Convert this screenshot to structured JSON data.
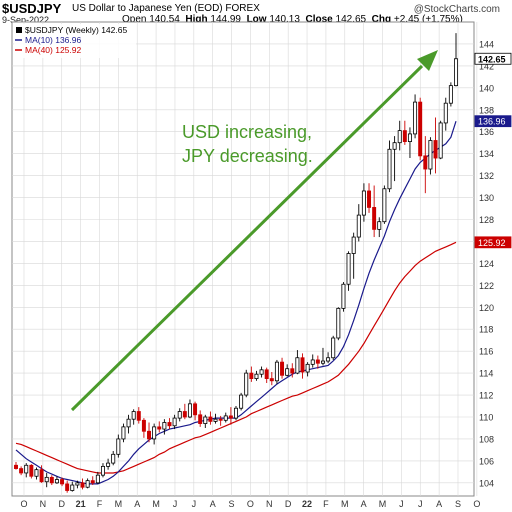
{
  "header": {
    "symbol": "$USDJPY",
    "description": "US Dollar to Japanese Yen (EOD)  FOREX",
    "copyright": "@StockCharts.com",
    "date": "9-Sep-2022",
    "open_label": "Open",
    "open": "140.54",
    "high_label": "High",
    "high": "144.99",
    "low_label": "Low",
    "low": "140.13",
    "close_label": "Close",
    "close": "142.65",
    "chg_label": "Chg",
    "chg": "+2.45 (+1.75%)"
  },
  "legend": [
    {
      "label": "$USDJPY (Weekly) 142.65",
      "color": "#000000"
    },
    {
      "label": "MA(10) 136.96",
      "color": "#1a1a8c"
    },
    {
      "label": "MA(40) 125.92",
      "color": "#cc0000"
    }
  ],
  "annotation": {
    "line1": "USD increasing,",
    "line2": "JPY decreasing.",
    "color": "#4a9a2a"
  },
  "colors": {
    "up": "#000000",
    "down": "#cc0000",
    "ma10": "#1a1a8c",
    "ma40": "#cc0000",
    "arrow": "#4a9a2a",
    "grid": "#d8d8d8"
  },
  "chart_data": {
    "type": "candlestick",
    "title": "$USDJPY",
    "y_ticks": [
      104,
      106,
      108,
      110,
      112,
      114,
      116,
      118,
      120,
      122,
      124,
      126,
      128,
      130,
      132,
      134,
      136,
      138,
      140,
      142,
      144
    ],
    "y_range": [
      102.8,
      146
    ],
    "x_labels": [
      "O",
      "N",
      "D",
      "21",
      "F",
      "M",
      "A",
      "M",
      "J",
      "J",
      "A",
      "S",
      "O",
      "N",
      "D",
      "22",
      "F",
      "M",
      "A",
      "M",
      "J",
      "J",
      "A",
      "S",
      "O"
    ],
    "last_price_tags": [
      {
        "value": 142.65,
        "label": "142.65",
        "bold": true
      },
      {
        "value": 136.96,
        "label": "136.96"
      },
      {
        "value": 125.92,
        "label": "125.92"
      }
    ],
    "candles": [
      [
        105.6,
        105.9,
        105.2,
        105.3
      ],
      [
        105.3,
        105.5,
        104.7,
        104.9
      ],
      [
        104.9,
        105.8,
        104.5,
        105.6
      ],
      [
        105.6,
        105.7,
        104.4,
        104.6
      ],
      [
        104.6,
        105.4,
        104.3,
        105.2
      ],
      [
        105.2,
        105.6,
        104.0,
        104.1
      ],
      [
        104.1,
        104.9,
        103.6,
        104.5
      ],
      [
        104.5,
        104.7,
        103.8,
        104.0
      ],
      [
        104.0,
        104.6,
        103.9,
        104.3
      ],
      [
        104.3,
        104.5,
        103.7,
        103.9
      ],
      [
        103.9,
        104.2,
        103.1,
        103.3
      ],
      [
        103.3,
        104.1,
        103.2,
        103.8
      ],
      [
        103.8,
        104.2,
        103.5,
        104.0
      ],
      [
        104.0,
        104.4,
        103.4,
        103.6
      ],
      [
        103.6,
        104.4,
        103.5,
        104.2
      ],
      [
        104.2,
        104.6,
        103.8,
        104.0
      ],
      [
        104.0,
        105.0,
        103.9,
        104.7
      ],
      [
        104.7,
        105.8,
        104.5,
        105.5
      ],
      [
        105.5,
        106.2,
        105.2,
        105.8
      ],
      [
        105.8,
        106.9,
        105.6,
        106.6
      ],
      [
        106.6,
        108.4,
        106.3,
        108.0
      ],
      [
        108.0,
        109.4,
        107.7,
        109.1
      ],
      [
        109.1,
        110.2,
        108.5,
        109.8
      ],
      [
        109.8,
        110.7,
        109.3,
        110.5
      ],
      [
        110.5,
        110.9,
        109.4,
        109.7
      ],
      [
        109.7,
        109.9,
        108.1,
        108.7
      ],
      [
        108.7,
        109.5,
        107.7,
        108.0
      ],
      [
        108.0,
        109.4,
        107.5,
        109.1
      ],
      [
        109.1,
        109.6,
        108.6,
        108.9
      ],
      [
        108.9,
        109.8,
        108.4,
        109.5
      ],
      [
        109.5,
        109.9,
        108.9,
        109.2
      ],
      [
        109.2,
        110.2,
        108.9,
        109.9
      ],
      [
        109.9,
        110.8,
        109.6,
        110.5
      ],
      [
        110.5,
        111.2,
        109.8,
        110.0
      ],
      [
        110.0,
        111.6,
        109.9,
        111.2
      ],
      [
        111.2,
        111.4,
        109.7,
        110.2
      ],
      [
        110.2,
        110.6,
        109.1,
        109.4
      ],
      [
        109.4,
        110.2,
        109.0,
        110.0
      ],
      [
        110.0,
        110.5,
        109.3,
        109.6
      ],
      [
        109.6,
        110.3,
        109.4,
        109.8
      ],
      [
        109.8,
        110.1,
        109.2,
        109.7
      ],
      [
        109.7,
        110.4,
        109.5,
        110.1
      ],
      [
        110.1,
        110.9,
        109.3,
        109.9
      ],
      [
        109.9,
        111.0,
        109.7,
        110.8
      ],
      [
        110.8,
        112.2,
        110.6,
        112.0
      ],
      [
        112.0,
        114.3,
        111.8,
        114.0
      ],
      [
        114.0,
        114.6,
        113.2,
        113.5
      ],
      [
        113.5,
        114.2,
        113.3,
        113.9
      ],
      [
        113.9,
        114.6,
        113.6,
        114.3
      ],
      [
        114.3,
        114.5,
        113.1,
        113.5
      ],
      [
        113.5,
        114.1,
        112.9,
        113.3
      ],
      [
        113.3,
        115.2,
        113.0,
        115.0
      ],
      [
        115.0,
        115.4,
        113.5,
        113.8
      ],
      [
        113.8,
        114.8,
        113.7,
        114.4
      ],
      [
        114.4,
        114.9,
        113.6,
        114.0
      ],
      [
        114.0,
        116.1,
        113.9,
        115.4
      ],
      [
        115.4,
        115.8,
        113.5,
        114.1
      ],
      [
        114.1,
        115.0,
        113.7,
        114.8
      ],
      [
        114.8,
        115.7,
        114.5,
        115.2
      ],
      [
        115.2,
        115.6,
        114.4,
        114.9
      ],
      [
        114.9,
        116.3,
        114.7,
        115.1
      ],
      [
        115.1,
        115.9,
        114.9,
        115.4
      ],
      [
        115.4,
        117.4,
        115.2,
        117.2
      ],
      [
        117.2,
        120.0,
        117.0,
        119.9
      ],
      [
        119.9,
        122.3,
        119.6,
        122.1
      ],
      [
        122.1,
        125.1,
        121.5,
        124.9
      ],
      [
        124.9,
        126.8,
        122.6,
        126.4
      ],
      [
        126.4,
        129.4,
        126.0,
        128.4
      ],
      [
        128.4,
        131.3,
        127.8,
        130.6
      ],
      [
        130.6,
        131.3,
        128.6,
        129.1
      ],
      [
        129.1,
        131.1,
        126.4,
        127.1
      ],
      [
        127.1,
        128.2,
        126.4,
        127.8
      ],
      [
        127.8,
        131.1,
        127.6,
        130.8
      ],
      [
        130.8,
        135.2,
        130.5,
        134.4
      ],
      [
        134.4,
        135.6,
        131.5,
        135.0
      ],
      [
        135.0,
        137.0,
        134.3,
        136.1
      ],
      [
        136.1,
        137.0,
        134.8,
        135.1
      ],
      [
        135.1,
        136.4,
        133.6,
        135.8
      ],
      [
        135.8,
        139.4,
        135.4,
        138.7
      ],
      [
        138.7,
        139.1,
        133.4,
        133.8
      ],
      [
        133.8,
        135.6,
        130.4,
        132.6
      ],
      [
        132.6,
        135.5,
        132.1,
        135.2
      ],
      [
        135.2,
        137.3,
        132.2,
        133.6
      ],
      [
        133.6,
        137.0,
        133.5,
        136.8
      ],
      [
        136.8,
        139.1,
        136.1,
        138.6
      ],
      [
        138.6,
        140.5,
        138.3,
        140.2
      ],
      [
        140.2,
        144.99,
        140.13,
        142.65
      ]
    ],
    "ma10": [
      107.0,
      106.6,
      106.2,
      105.9,
      105.6,
      105.3,
      105.0,
      104.8,
      104.6,
      104.4,
      104.3,
      104.2,
      104.1,
      104.0,
      103.9,
      103.9,
      103.9,
      104.1,
      104.3,
      104.6,
      105.0,
      105.5,
      106.0,
      106.6,
      107.1,
      107.5,
      107.9,
      108.2,
      108.5,
      108.7,
      108.9,
      109.0,
      109.1,
      109.2,
      109.3,
      109.5,
      109.6,
      109.7,
      109.8,
      109.9,
      109.9,
      109.9,
      109.9,
      109.9,
      110.2,
      110.6,
      111.0,
      111.4,
      111.8,
      112.2,
      112.6,
      113.0,
      113.3,
      113.6,
      113.9,
      114.1,
      114.2,
      114.3,
      114.4,
      114.5,
      114.6,
      114.7,
      115.1,
      115.6,
      116.4,
      117.5,
      118.8,
      120.2,
      121.7,
      123.1,
      124.3,
      125.4,
      126.5,
      127.8,
      128.9,
      129.9,
      130.8,
      131.7,
      132.6,
      133.2,
      133.6,
      134.0,
      134.3,
      134.6,
      134.9,
      135.5,
      136.96
    ],
    "ma40": [
      107.6,
      107.5,
      107.3,
      107.1,
      106.9,
      106.7,
      106.5,
      106.3,
      106.1,
      105.9,
      105.7,
      105.5,
      105.3,
      105.2,
      105.1,
      105.0,
      104.9,
      104.9,
      104.9,
      104.9,
      105.0,
      105.1,
      105.3,
      105.5,
      105.7,
      105.9,
      106.1,
      106.3,
      106.6,
      106.8,
      107.1,
      107.3,
      107.5,
      107.7,
      107.9,
      108.1,
      108.2,
      108.4,
      108.6,
      108.8,
      109.0,
      109.2,
      109.4,
      109.6,
      109.8,
      110.0,
      110.3,
      110.5,
      110.7,
      110.9,
      111.1,
      111.3,
      111.5,
      111.7,
      111.9,
      112.0,
      112.2,
      112.4,
      112.6,
      112.8,
      113.0,
      113.2,
      113.5,
      113.8,
      114.3,
      114.8,
      115.4,
      116.0,
      116.7,
      117.5,
      118.3,
      119.1,
      119.9,
      120.7,
      121.5,
      122.2,
      122.8,
      123.3,
      123.8,
      124.2,
      124.5,
      124.8,
      125.1,
      125.3,
      125.5,
      125.7,
      125.92
    ]
  }
}
